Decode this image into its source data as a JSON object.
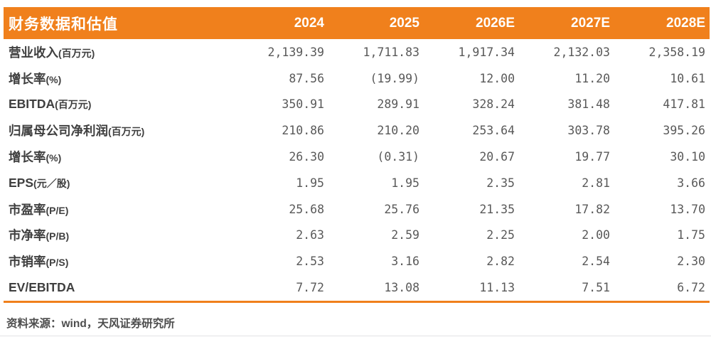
{
  "table": {
    "header": {
      "title": "财务数据和估值",
      "years": [
        "2024",
        "2025",
        "2026E",
        "2027E",
        "2028E"
      ]
    },
    "rows": [
      {
        "label": "营业收入",
        "label_suffix": "(百万元)",
        "values": [
          "2,139.39",
          "1,711.83",
          "1,917.34",
          "2,132.03",
          "2,358.19"
        ]
      },
      {
        "label": "增长率",
        "label_suffix": "(%)",
        "values": [
          "87.56",
          "(19.99)",
          "12.00",
          "11.20",
          "10.61"
        ]
      },
      {
        "label": "EBITDA",
        "label_suffix": "(百万元)",
        "values": [
          "350.91",
          "289.91",
          "328.24",
          "381.48",
          "417.81"
        ]
      },
      {
        "label": "归属母公司净利润",
        "label_suffix": "(百万元)",
        "values": [
          "210.86",
          "210.20",
          "253.64",
          "303.78",
          "395.26"
        ]
      },
      {
        "label": "增长率",
        "label_suffix": "(%)",
        "values": [
          "26.30",
          "(0.31)",
          "20.67",
          "19.77",
          "30.10"
        ]
      },
      {
        "label": "EPS",
        "label_suffix": "(元／股)",
        "values": [
          "1.95",
          "1.95",
          "2.35",
          "2.81",
          "3.66"
        ]
      },
      {
        "label": "市盈率",
        "label_suffix": "(P/E)",
        "values": [
          "25.68",
          "25.76",
          "21.35",
          "17.82",
          "13.70"
        ]
      },
      {
        "label": "市净率",
        "label_suffix": "(P/B)",
        "values": [
          "2.63",
          "2.59",
          "2.25",
          "2.00",
          "1.75"
        ]
      },
      {
        "label": "市销率",
        "label_suffix": "(P/S)",
        "values": [
          "2.53",
          "3.16",
          "2.82",
          "2.54",
          "2.30"
        ]
      },
      {
        "label": "EV/EBITDA",
        "label_suffix": "",
        "values": [
          "7.72",
          "13.08",
          "11.13",
          "7.51",
          "6.72"
        ]
      }
    ],
    "source_note": "资料来源：wind，天风证券研究所"
  },
  "colors": {
    "accent_orange": "#F0801C",
    "label_text": "#3F3F3F",
    "number_text": "#595959"
  }
}
